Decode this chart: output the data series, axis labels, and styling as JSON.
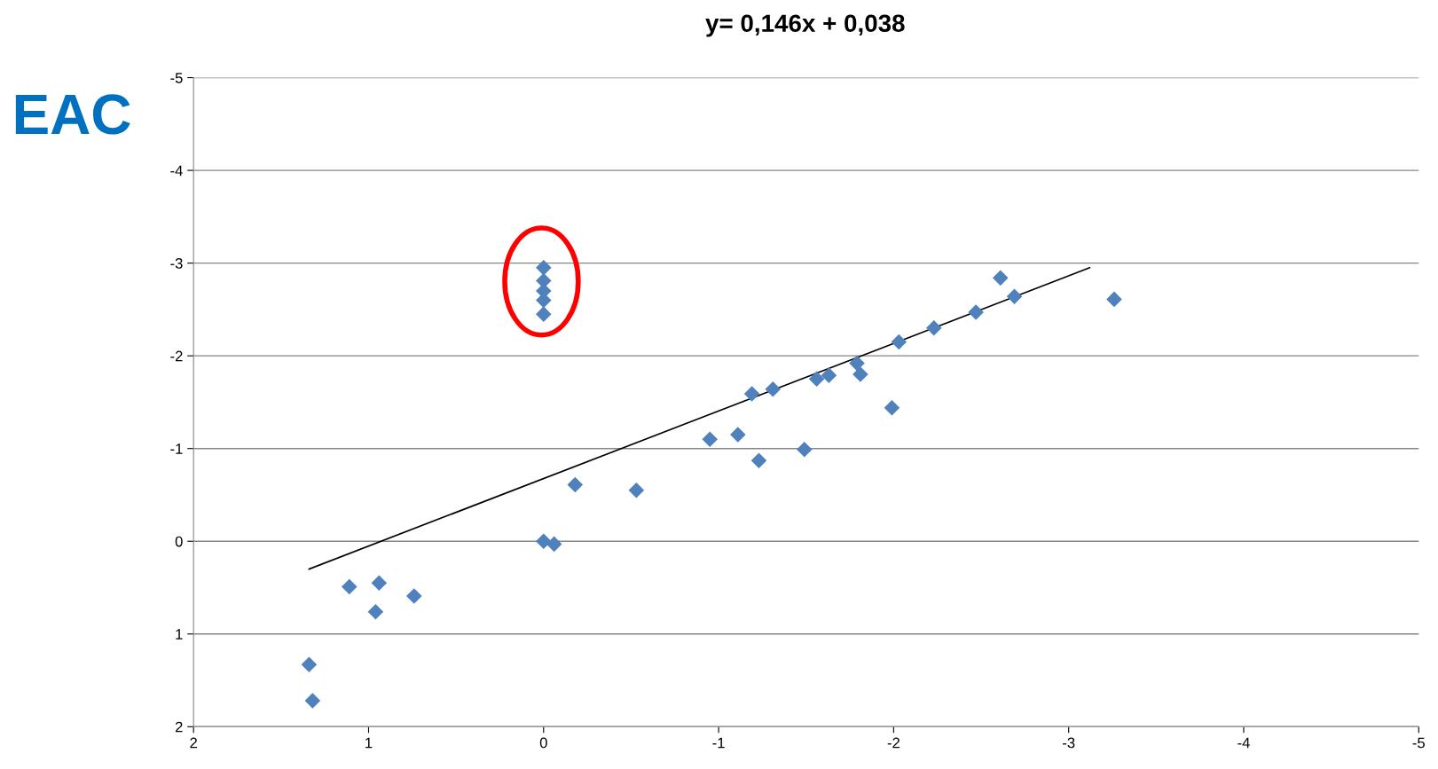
{
  "chart_data": {
    "type": "scatter",
    "title": "y= 0,146x + 0,038",
    "ylabel": "EAC",
    "marker": "diamond",
    "grid": "y",
    "legend": false,
    "xlim": [
      2,
      -5
    ],
    "xticks": [
      2,
      1,
      0,
      -1,
      -2,
      -3,
      -4,
      -5
    ],
    "ylim": [
      2,
      -5
    ],
    "yticks": [
      2,
      1,
      0,
      -1,
      -2,
      -3,
      -4,
      -5
    ],
    "series": [
      {
        "color": "#4f81bd",
        "x": [
          1.34,
          1.32,
          1.11,
          0.96,
          0.94,
          0.74,
          0,
          -0.06,
          -0.18,
          -0.53,
          0,
          0,
          0,
          0,
          0,
          -0.95,
          -1.11,
          -1.23,
          -1.19,
          -1.31,
          -1.49,
          -1.56,
          -1.63,
          -1.79,
          -1.81,
          -1.99,
          -2.03,
          -2.23,
          -2.47,
          -2.61,
          -2.69,
          -3.26
        ],
        "values": [
          1.33,
          1.72,
          0.49,
          0.76,
          0.45,
          0.59,
          0,
          0.03,
          -0.61,
          -0.55,
          -2.95,
          -2.81,
          -2.7,
          -2.6,
          -2.45,
          -1.1,
          -1.15,
          -0.87,
          -1.59,
          -1.64,
          -0.99,
          -1.75,
          -1.79,
          -1.92,
          -1.8,
          -1.44,
          -2.15,
          -2.3,
          -2.47,
          -2.84,
          -2.64,
          -2.61
        ]
      },
      {
        "type": "line",
        "color": "#000000",
        "marker": "none",
        "x": [
          1.34,
          -3.12
        ],
        "values": [
          0.3,
          -2.95
        ]
      }
    ]
  }
}
